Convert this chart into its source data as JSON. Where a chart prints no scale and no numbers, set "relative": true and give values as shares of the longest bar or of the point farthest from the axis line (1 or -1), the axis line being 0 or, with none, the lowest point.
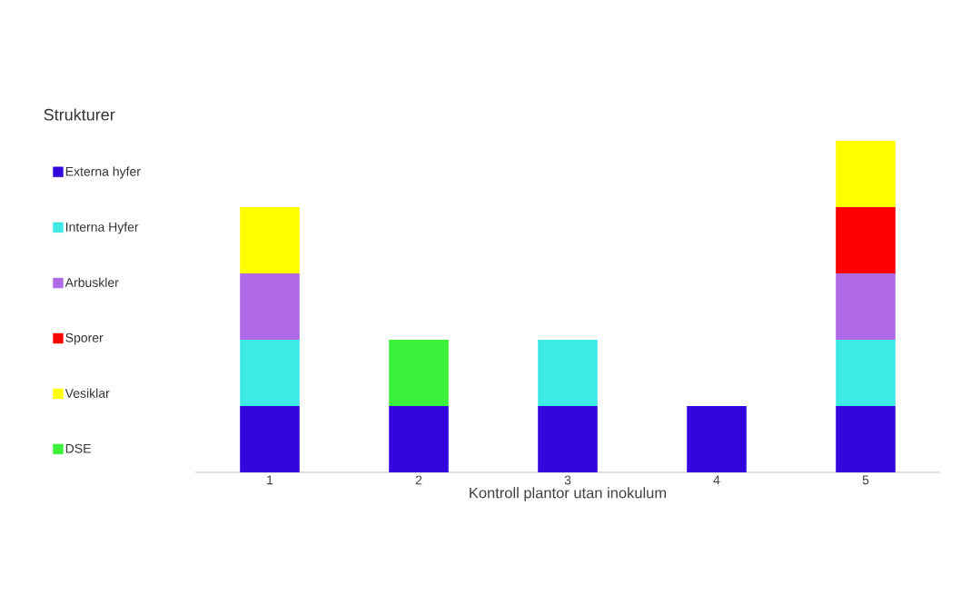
{
  "chart_data": {
    "type": "bar",
    "stacked": true,
    "relative": true,
    "legend": "left",
    "legend_title": "Strukturer",
    "xlabel": "Kontroll plantor utan inokulum",
    "categories": [
      "1",
      "2",
      "3",
      "4",
      "5"
    ],
    "series": [
      {
        "name": "Externa hyfer",
        "color": "#3306dd",
        "values": [
          0.2,
          0.2,
          0.2,
          0.2,
          0.2
        ]
      },
      {
        "name": "Interna Hyfer",
        "color": "#3deae6",
        "values": [
          0.2,
          null,
          0.2,
          null,
          0.2
        ]
      },
      {
        "name": "Arbuskler",
        "color": "#b06ae6",
        "values": [
          0.2,
          null,
          null,
          null,
          0.2
        ]
      },
      {
        "name": "Sporer",
        "color": "#ff0000",
        "values": [
          null,
          null,
          null,
          null,
          0.2
        ]
      },
      {
        "name": "Vesiklar",
        "color": "#ffff00",
        "values": [
          0.2,
          null,
          null,
          null,
          0.2
        ]
      },
      {
        "name": "DSE",
        "color": "#3cf03c",
        "values": [
          null,
          0.2,
          null,
          null,
          null
        ]
      }
    ]
  }
}
